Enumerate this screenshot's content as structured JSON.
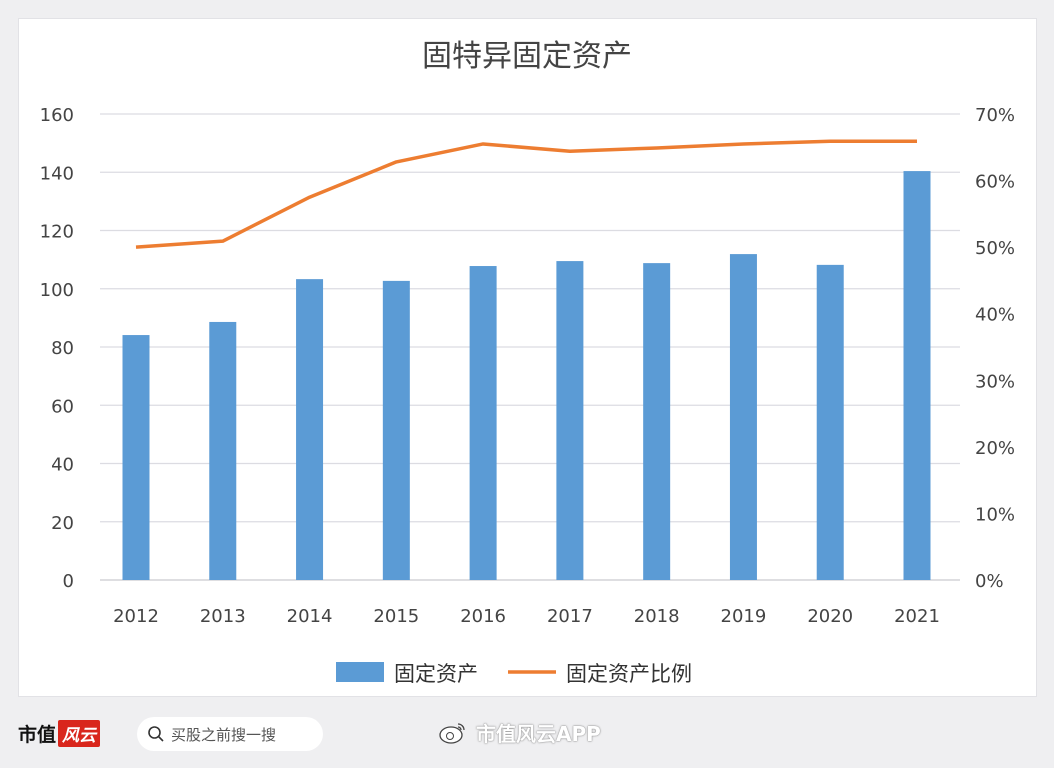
{
  "chart_data": {
    "type": "bar+line",
    "title": "固特异固定资产",
    "categories": [
      "2012",
      "2013",
      "2014",
      "2015",
      "2016",
      "2017",
      "2018",
      "2019",
      "2020",
      "2021"
    ],
    "series": [
      {
        "name": "固定资产",
        "type": "bar",
        "axis": "left",
        "color": "#5b9bd5",
        "values": [
          84.1,
          88.6,
          103.3,
          102.7,
          107.8,
          109.5,
          108.8,
          111.9,
          108.2,
          140.4
        ]
      },
      {
        "name": "固定资产比例",
        "type": "line",
        "axis": "right",
        "color": "#ed7d31",
        "values": [
          50.0,
          50.9,
          57.5,
          62.8,
          65.5,
          64.4,
          64.9,
          65.5,
          65.9,
          65.9
        ]
      }
    ],
    "y_left": {
      "min": 0,
      "max": 160,
      "ticks": [
        "0",
        "20",
        "40",
        "60",
        "80",
        "100",
        "120",
        "140",
        "160"
      ]
    },
    "y_right": {
      "min": 0,
      "max": 70,
      "ticks": [
        "0%",
        "10%",
        "20%",
        "30%",
        "40%",
        "50%",
        "60%",
        "70%"
      ]
    },
    "grid": true,
    "legend": "bottom"
  },
  "footer": {
    "brand_text": "市值",
    "brand_logo": "风云",
    "search_placeholder": "买股之前搜一搜",
    "search_icon": "search-icon",
    "app_icon": "weibo-icon",
    "app_label": "市值风云APP"
  }
}
